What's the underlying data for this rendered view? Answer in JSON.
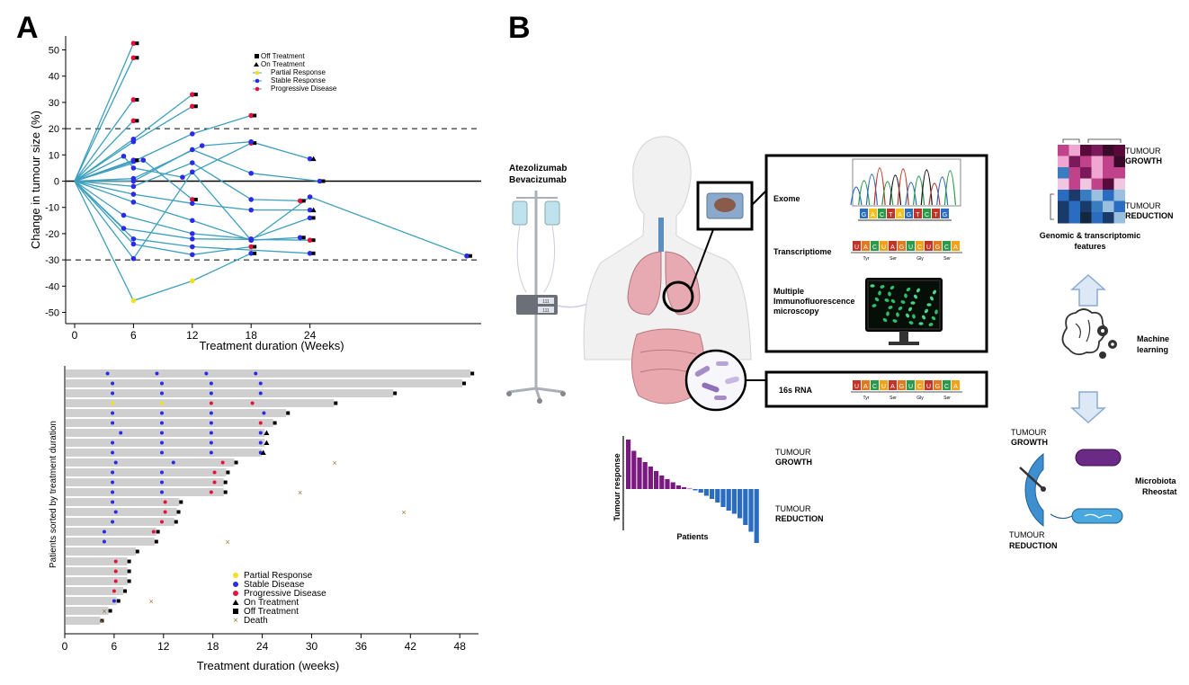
{
  "panels": {
    "a": "A",
    "b": "B"
  },
  "chart_data": [
    {
      "type": "line",
      "ylabel": "Change in tumour size (%)",
      "xlabel": "Treatment duration (Weeks)",
      "xticks": [
        0,
        6,
        12,
        18,
        24
      ],
      "yticks": [
        50,
        40,
        30,
        20,
        10,
        0,
        -10,
        -20,
        -30,
        -40,
        -50
      ],
      "xlim": [
        -1,
        42
      ],
      "ylim": [
        -52,
        55
      ],
      "reference_lines": [
        20,
        0,
        -30
      ],
      "legend": [
        "Off Treatment",
        "On Treatment",
        "Partial Response",
        "Stable Response",
        "Progressive Disease"
      ],
      "colors": {
        "line": "#3ea0bd",
        "partial": "#f0e020",
        "stable": "#2a2ae8",
        "progressive": "#e8103a",
        "marker": "#000000"
      },
      "series": [
        {
          "points": [
            [
              0,
              0
            ],
            [
              6,
              52.5
            ]
          ],
          "status": [
            "P"
          ],
          "end": "off"
        },
        {
          "points": [
            [
              0,
              0
            ],
            [
              6,
              47
            ]
          ],
          "status": [
            "P"
          ],
          "end": "off"
        },
        {
          "points": [
            [
              0,
              0
            ],
            [
              6,
              31
            ]
          ],
          "status": [
            "P"
          ],
          "end": "off"
        },
        {
          "points": [
            [
              0,
              0
            ],
            [
              6,
              23
            ]
          ],
          "status": [
            "P"
          ],
          "end": "off"
        },
        {
          "points": [
            [
              0,
              0
            ],
            [
              6,
              16
            ],
            [
              12,
              33
            ]
          ],
          "status": [
            "S",
            "P"
          ],
          "end": "off"
        },
        {
          "points": [
            [
              0,
              0
            ],
            [
              6,
              15
            ],
            [
              12,
              28.5
            ]
          ],
          "status": [
            "S",
            "P"
          ],
          "end": "off"
        },
        {
          "points": [
            [
              0,
              0
            ],
            [
              6,
              7.5
            ],
            [
              12,
              18
            ],
            [
              18,
              25
            ]
          ],
          "status": [
            "S",
            "S",
            "P"
          ],
          "end": "off"
        },
        {
          "points": [
            [
              0,
              0
            ],
            [
              6,
              8
            ]
          ],
          "status": [
            "S"
          ],
          "end": "off"
        },
        {
          "points": [
            [
              0,
              0
            ],
            [
              7,
              8
            ],
            [
              12,
              -7
            ]
          ],
          "status": [
            "S",
            "P"
          ],
          "end": "off"
        },
        {
          "points": [
            [
              0,
              0
            ],
            [
              5,
              9.5
            ],
            [
              6,
              5
            ],
            [
              11,
              1.5
            ],
            [
              18,
              14.5
            ]
          ],
          "status": [
            "S",
            "S",
            "S",
            "P"
          ],
          "end": "off"
        },
        {
          "points": [
            [
              0,
              0
            ],
            [
              6,
              1
            ],
            [
              13,
              13.5
            ],
            [
              18,
              15
            ],
            [
              24,
              8.5
            ]
          ],
          "status": [
            "S",
            "S",
            "S",
            "S"
          ],
          "end": "on"
        },
        {
          "points": [
            [
              0,
              0
            ],
            [
              6,
              0
            ],
            [
              12,
              12
            ],
            [
              18,
              3
            ],
            [
              25,
              0
            ]
          ],
          "status": [
            "S",
            "S",
            "S",
            "S"
          ],
          "end": "off"
        },
        {
          "points": [
            [
              0,
              0
            ],
            [
              6,
              -2
            ],
            [
              12,
              7
            ],
            [
              18,
              -7
            ],
            [
              23,
              -7.5
            ]
          ],
          "status": [
            "S",
            "S",
            "S",
            "P"
          ],
          "end": "off"
        },
        {
          "points": [
            [
              0,
              0
            ],
            [
              6,
              -5
            ],
            [
              12,
              -8.5
            ],
            [
              18,
              -11
            ],
            [
              24,
              -11
            ]
          ],
          "status": [
            "S",
            "S",
            "S",
            "S"
          ],
          "end": "on"
        },
        {
          "points": [
            [
              0,
              0
            ],
            [
              6,
              -8
            ],
            [
              12,
              -15
            ],
            [
              18,
              -22.5
            ],
            [
              24,
              -6
            ],
            [
              40,
              -28.5
            ]
          ],
          "status": [
            "S",
            "S",
            "S",
            "S",
            "S"
          ],
          "end": "off"
        },
        {
          "points": [
            [
              0,
              0
            ],
            [
              5,
              -13
            ],
            [
              12,
              -20
            ],
            [
              18,
              -22
            ],
            [
              24,
              -14
            ]
          ],
          "status": [
            "S",
            "S",
            "S",
            "S"
          ],
          "end": "off"
        },
        {
          "points": [
            [
              0,
              0
            ],
            [
              5,
              -18
            ],
            [
              12,
              -22
            ],
            [
              24,
              -22.5
            ]
          ],
          "status": [
            "S",
            "S",
            "P"
          ],
          "end": "off"
        },
        {
          "points": [
            [
              0,
              0
            ],
            [
              6,
              -22
            ],
            [
              12,
              -25
            ],
            [
              24,
              -27.5
            ]
          ],
          "status": [
            "S",
            "S",
            "S"
          ],
          "end": "off"
        },
        {
          "points": [
            [
              0,
              0
            ],
            [
              6,
              -24
            ],
            [
              12,
              -28
            ],
            [
              18,
              -25
            ]
          ],
          "status": [
            "S",
            "S",
            "P"
          ],
          "end": "off"
        },
        {
          "points": [
            [
              0,
              0
            ],
            [
              6,
              -29.5
            ],
            [
              12,
              3.5
            ],
            [
              18,
              -22.5
            ],
            [
              23,
              -21.5
            ]
          ],
          "status": [
            "S",
            "S",
            "S",
            "S"
          ],
          "end": "off"
        },
        {
          "points": [
            [
              0,
              0
            ],
            [
              6,
              -45.5
            ],
            [
              12,
              -38
            ],
            [
              18,
              -27.5
            ]
          ],
          "status": [
            "R",
            "R",
            "S"
          ],
          "end": "off"
        }
      ]
    },
    {
      "type": "bar",
      "orientation": "horizontal",
      "ylabel": "Patients sorted by treatment duration",
      "xlabel": "Treatment duration (weeks)",
      "xticks": [
        0,
        6,
        12,
        18,
        24,
        30,
        36,
        42,
        48
      ],
      "xlim": [
        0,
        50
      ],
      "legend": [
        "Partial Response",
        "Stable Disease",
        "Progressive Disease",
        "On Treatment",
        "Off Treatment",
        "Death"
      ],
      "colors": {
        "bar": "#cfcfcf",
        "partial": "#f0e020",
        "stable": "#2a2ae8",
        "progressive": "#e8103a",
        "death": "#9a7a30"
      },
      "bars": [
        {
          "length": 49.2,
          "end": "off",
          "markers": [
            [
              5.2,
              "S"
            ],
            [
              11.2,
              "S"
            ],
            [
              17.2,
              "S"
            ],
            [
              23.2,
              "S"
            ]
          ]
        },
        {
          "length": 48.2,
          "end": "off",
          "markers": [
            [
              5.8,
              "S"
            ],
            [
              11.8,
              "S"
            ],
            [
              17.8,
              "S"
            ],
            [
              23.8,
              "S"
            ]
          ]
        },
        {
          "length": 39.8,
          "end": "off",
          "markers": [
            [
              5.8,
              "S"
            ],
            [
              11.8,
              "S"
            ],
            [
              17.8,
              "S"
            ],
            [
              23.8,
              "S"
            ]
          ]
        },
        {
          "length": 32.6,
          "end": "off",
          "markers": [
            [
              5.8,
              "R"
            ],
            [
              11.8,
              "R"
            ],
            [
              17.8,
              "P"
            ],
            [
              22.8,
              "P"
            ]
          ]
        },
        {
          "length": 26.8,
          "end": "off",
          "markers": [
            [
              5.8,
              "S"
            ],
            [
              11.8,
              "S"
            ],
            [
              17.8,
              "S"
            ],
            [
              24.2,
              "S"
            ]
          ]
        },
        {
          "length": 25.2,
          "end": "off",
          "markers": [
            [
              5.8,
              "S"
            ],
            [
              11.8,
              "S"
            ],
            [
              17.8,
              "S"
            ],
            [
              23.8,
              "P"
            ]
          ]
        },
        {
          "length": 24.2,
          "end": "on",
          "markers": [
            [
              6.8,
              "S"
            ],
            [
              11.8,
              "S"
            ],
            [
              17.8,
              "S"
            ],
            [
              23.8,
              "S"
            ]
          ]
        },
        {
          "length": 24.2,
          "end": "on",
          "markers": [
            [
              5.8,
              "S"
            ],
            [
              11.8,
              "S"
            ],
            [
              17.8,
              "S"
            ],
            [
              23.8,
              "S"
            ]
          ]
        },
        {
          "length": 23.8,
          "end": "on",
          "markers": [
            [
              5.8,
              "S"
            ],
            [
              11.8,
              "S"
            ],
            [
              17.8,
              "S"
            ],
            [
              23.8,
              "S"
            ]
          ]
        },
        {
          "length": 20.5,
          "end": "off",
          "markers": [
            [
              6.2,
              "S"
            ],
            [
              13.2,
              "S"
            ],
            [
              19.2,
              "P"
            ]
          ],
          "death": 32.8
        },
        {
          "length": 19.5,
          "end": "off",
          "markers": [
            [
              5.8,
              "S"
            ],
            [
              11.8,
              "S"
            ],
            [
              18.2,
              "P"
            ]
          ]
        },
        {
          "length": 19.2,
          "end": "off",
          "markers": [
            [
              5.8,
              "S"
            ],
            [
              11.8,
              "S"
            ],
            [
              18.2,
              "P"
            ]
          ]
        },
        {
          "length": 19.2,
          "end": "off",
          "markers": [
            [
              5.8,
              "S"
            ],
            [
              11.8,
              "S"
            ],
            [
              17.8,
              "P"
            ]
          ],
          "death": 28.6
        },
        {
          "length": 13.8,
          "end": "off",
          "markers": [
            [
              5.8,
              "S"
            ],
            [
              12.2,
              "P"
            ]
          ]
        },
        {
          "length": 13.5,
          "end": "off",
          "markers": [
            [
              6.2,
              "S"
            ],
            [
              12.2,
              "P"
            ]
          ],
          "death": 41.2
        },
        {
          "length": 13.2,
          "end": "off",
          "markers": [
            [
              5.8,
              "S"
            ],
            [
              11.8,
              "P"
            ]
          ]
        },
        {
          "length": 11.0,
          "end": "off",
          "markers": [
            [
              4.8,
              "S"
            ],
            [
              10.8,
              "P"
            ]
          ]
        },
        {
          "length": 10.8,
          "end": "off",
          "markers": [
            [
              4.8,
              "S"
            ]
          ],
          "death": 19.8
        },
        {
          "length": 8.5,
          "end": "off",
          "markers": []
        },
        {
          "length": 7.5,
          "end": "off",
          "markers": [
            [
              6.2,
              "P"
            ]
          ]
        },
        {
          "length": 7.5,
          "end": "off",
          "markers": [
            [
              6.2,
              "P"
            ]
          ]
        },
        {
          "length": 7.5,
          "end": "off",
          "markers": [
            [
              6.2,
              "P"
            ]
          ]
        },
        {
          "length": 7.0,
          "end": "off",
          "markers": [
            [
              6.0,
              "P"
            ]
          ]
        },
        {
          "length": 6.2,
          "end": "off",
          "markers": [
            [
              6.0,
              "S"
            ]
          ],
          "death": 10.5
        },
        {
          "length": 5.2,
          "end": "off",
          "markers": [],
          "death": 4.8
        },
        {
          "length": 4.2,
          "end": "off",
          "markers": [],
          "death": 4.5
        }
      ]
    },
    {
      "type": "bar",
      "ylabel": "Tumour response",
      "xlabel": "Patients",
      "values": [
        11,
        8.5,
        7,
        6,
        5,
        4,
        3,
        2.2,
        1.5,
        0.8,
        0.4,
        0.1,
        -0.3,
        -0.8,
        -1.5,
        -2.2,
        -3,
        -4,
        -4.8,
        -5.5,
        -6.5,
        -8,
        -9.5,
        -12
      ],
      "colors": {
        "growth": "#7a1a80",
        "reduction": "#2a6cc0"
      },
      "growth_label": [
        "TUMOUR",
        "GROWTH"
      ],
      "reduction_label": [
        "TUMOUR",
        "REDUCTION"
      ]
    }
  ],
  "diagram": {
    "drugs": [
      "Atezolizumab",
      "Bevacizumab"
    ],
    "omics": {
      "exome": "Exome",
      "exome_bases": [
        "G",
        "A",
        "C",
        "T",
        "A",
        "G",
        "T",
        "C",
        "T",
        "G"
      ],
      "transcriptome": "Transcriptiome",
      "rna_bases": [
        "U",
        "A",
        "C",
        "U",
        "A",
        "G",
        "U",
        "C",
        "U",
        "G",
        "C",
        "A"
      ],
      "codons": [
        "Tyr",
        "Ser",
        "Gly",
        "Ser"
      ],
      "microscopy": [
        "Multiple",
        "Immunofluorescence",
        "microscopy"
      ],
      "rna16s": "16s RNA"
    },
    "heatmap_growth": [
      "TUMOUR",
      "GROWTH"
    ],
    "heatmap_reduction": [
      "TUMOUR",
      "REDUCTION"
    ],
    "features": [
      "Genomic & transcriptomic",
      "features"
    ],
    "ml": [
      "Machine",
      "learning"
    ],
    "rheostat": [
      "Microbiota",
      "Rheostat"
    ],
    "rheostat_growth": [
      "TUMOUR",
      "GROWTH"
    ],
    "rheostat_reduction": [
      "TUMOUR",
      "REDUCTION"
    ],
    "pump_display": [
      "111",
      "111"
    ]
  }
}
